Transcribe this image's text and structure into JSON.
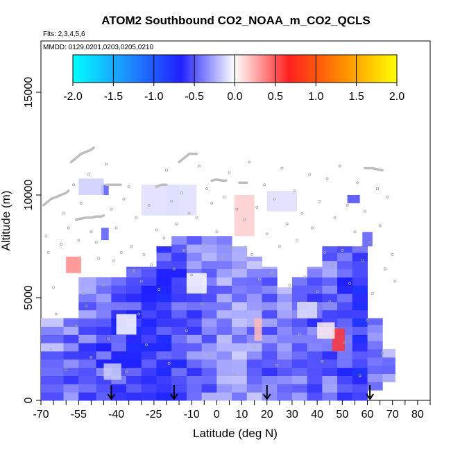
{
  "chart_data": {
    "type": "heatmap",
    "title": "ATOM2 Southbound CO2_NOAA_m_CO2_QCLS",
    "flights_label": "Flts: 2,3,4,5,6",
    "dates_label": "MMDD: 0129,0201,0203,0205,0210",
    "xlabel": "Latitude (deg N)",
    "ylabel": "Altitude (m)",
    "xlim": [
      -70,
      85
    ],
    "ylim": [
      0,
      17500
    ],
    "x_tick_labels": [
      "-70",
      "-55",
      "-40",
      "-25",
      "-10",
      "0",
      "10",
      "20",
      "30",
      "40",
      "50",
      "60",
      "70",
      "80"
    ],
    "x_tick_values": [
      -70,
      -55,
      -40,
      -25,
      -10,
      0,
      10,
      20,
      30,
      40,
      50,
      60,
      70,
      80
    ],
    "x_minor_tick_values": [
      -65,
      -60,
      -50,
      -45,
      -35,
      -30,
      -20,
      -15,
      -5,
      5,
      15,
      25,
      35,
      45,
      55,
      65,
      75,
      85
    ],
    "y_tick_values": [
      0,
      5000,
      10000,
      15000
    ],
    "y_tick_labels": [
      "0",
      "5000",
      "10000",
      "15000"
    ],
    "colorbar": {
      "min": -2.0,
      "max": 2.0,
      "tick_values": [
        -2.0,
        -1.5,
        -1.0,
        -0.5,
        0.0,
        0.5,
        1.0,
        1.5,
        2.0
      ],
      "tick_labels": [
        "-2.0",
        "-1.5",
        "-1.0",
        "-0.5",
        "0.0",
        "0.5",
        "1.0",
        "1.5",
        "2.0"
      ],
      "colors": [
        "#00ffff",
        "#1e90ff",
        "#2020ff",
        "#ffffff",
        "#ff2020",
        "#ff8c00",
        "#ffff00"
      ]
    },
    "heatmap_columns": [
      {
        "x0": -70,
        "x1": -61,
        "z0": 0,
        "z1": 4000,
        "value": -0.35
      },
      {
        "x0": -61,
        "x1": -55,
        "z0": 0,
        "z1": 4000,
        "value": -0.45
      },
      {
        "x0": -55,
        "x1": -48,
        "z0": 0,
        "z1": 6000,
        "value": -0.45
      },
      {
        "x0": -48,
        "x1": -42,
        "z0": 0,
        "z1": 6000,
        "value": -0.5
      },
      {
        "x0": -42,
        "x1": -36,
        "z0": 0,
        "z1": 6000,
        "value": -0.55
      },
      {
        "x0": -36,
        "x1": -30,
        "z0": 0,
        "z1": 6500,
        "value": -0.6
      },
      {
        "x0": -30,
        "x1": -24,
        "z0": 0,
        "z1": 6500,
        "value": -0.65
      },
      {
        "x0": -24,
        "x1": -18,
        "z0": 0,
        "z1": 7500,
        "value": -0.6
      },
      {
        "x0": -18,
        "x1": -12,
        "z0": 0,
        "z1": 8000,
        "value": -0.55
      },
      {
        "x0": -12,
        "x1": -6,
        "z0": 0,
        "z1": 8000,
        "value": -0.45
      },
      {
        "x0": -6,
        "x1": 0,
        "z0": 0,
        "z1": 8000,
        "value": -0.4
      },
      {
        "x0": 0,
        "x1": 6,
        "z0": 0,
        "z1": 8000,
        "value": -0.35
      },
      {
        "x0": 6,
        "x1": 12,
        "z0": 0,
        "z1": 7500,
        "value": -0.3
      },
      {
        "x0": 12,
        "x1": 18,
        "z0": 0,
        "z1": 7000,
        "value": -0.35
      },
      {
        "x0": 18,
        "x1": 24,
        "z0": 0,
        "z1": 6500,
        "value": -0.45
      },
      {
        "x0": 24,
        "x1": 30,
        "z0": 0,
        "z1": 5500,
        "value": -0.4
      },
      {
        "x0": 30,
        "x1": 36,
        "z0": 0,
        "z1": 6000,
        "value": -0.45
      },
      {
        "x0": 36,
        "x1": 42,
        "z0": 0,
        "z1": 6500,
        "value": -0.5
      },
      {
        "x0": 42,
        "x1": 48,
        "z0": 0,
        "z1": 7500,
        "value": -0.45
      },
      {
        "x0": 48,
        "x1": 54,
        "z0": 0,
        "z1": 7500,
        "value": -0.55
      },
      {
        "x0": 54,
        "x1": 60,
        "z0": 0,
        "z1": 7500,
        "value": -0.65
      },
      {
        "x0": 60,
        "x1": 66,
        "z0": 500,
        "z1": 4000,
        "value": -0.45
      },
      {
        "x0": 66,
        "x1": 71,
        "z0": 900,
        "z1": 2500,
        "value": -0.3
      }
    ],
    "anomalies": [
      {
        "x0": -60,
        "x1": -54,
        "z0": 6200,
        "z1": 7000,
        "value": 0.35
      },
      {
        "x0": 7,
        "x1": 15,
        "z0": 8000,
        "z1": 10000,
        "value": 0.15
      },
      {
        "x0": 15,
        "x1": 18,
        "z0": 2900,
        "z1": 4000,
        "value": 0.2
      },
      {
        "x0": 46,
        "x1": 51,
        "z0": 2400,
        "z1": 3500,
        "value": 0.6
      },
      {
        "x0": 40,
        "x1": 47,
        "z0": 3000,
        "z1": 3800,
        "value": 0.05
      },
      {
        "x0": -40,
        "x1": -32,
        "z0": 3200,
        "z1": 4200,
        "value": 0.0
      },
      {
        "x0": -12,
        "x1": -4,
        "z0": 5200,
        "z1": 6200,
        "value": 0.0
      },
      {
        "x0": 32,
        "x1": 40,
        "z0": 4000,
        "z1": 4800,
        "value": -0.1
      },
      {
        "x0": -45,
        "x1": -38,
        "z0": 1000,
        "z1": 1800,
        "value": -0.15
      },
      {
        "x0": 52,
        "x1": 57,
        "z0": 9600,
        "z1": 10000,
        "value": -0.55
      },
      {
        "x0": -46,
        "x1": -43,
        "z0": 10000,
        "z1": 10500,
        "value": -0.5
      },
      {
        "x0": -46,
        "x1": -43,
        "z0": 7800,
        "z1": 8400,
        "value": -0.5
      },
      {
        "x0": 58,
        "x1": 62,
        "z0": 7500,
        "z1": 8200,
        "value": -0.5
      },
      {
        "x0": -55,
        "x1": -45,
        "z0": 10000,
        "z1": 10800,
        "value": -0.15
      },
      {
        "x0": -20,
        "x1": -8,
        "z0": 9000,
        "z1": 10500,
        "value": -0.1
      },
      {
        "x0": 20,
        "x1": 32,
        "z0": 9200,
        "z1": 10200,
        "value": -0.1
      },
      {
        "x0": -30,
        "x1": -15,
        "z0": 9000,
        "z1": 10500,
        "value": -0.1
      }
    ],
    "flight_tracks": [
      {
        "x": [
          -69,
          -66,
          -64,
          -62,
          -60,
          -59
        ],
        "y": [
          9500,
          9800,
          9900,
          10000,
          10100,
          10200
        ]
      },
      {
        "x": [
          -58,
          -56,
          -54,
          -52,
          -50,
          -49
        ],
        "y": [
          11600,
          11800,
          12000,
          12100,
          12200,
          12300
        ]
      },
      {
        "x": [
          -56,
          -54,
          -52,
          -50,
          -48,
          -46,
          -45
        ],
        "y": [
          8800,
          8850,
          8900,
          8900,
          8950,
          8950,
          9000
        ]
      },
      {
        "x": [
          -15,
          -13,
          -11,
          -9,
          -8
        ],
        "y": [
          11600,
          11800,
          12000,
          12000,
          12000
        ]
      },
      {
        "x": [
          -44,
          -41,
          -38
        ],
        "y": [
          10500,
          10500,
          10500
        ]
      },
      {
        "x": [
          -24,
          -22,
          -20
        ],
        "y": [
          10400,
          10500,
          10500
        ]
      },
      {
        "x": [
          59,
          62,
          64,
          66
        ],
        "y": [
          11300,
          11300,
          11250,
          11200
        ]
      },
      {
        "x": [
          -2,
          0,
          2,
          4
        ],
        "y": [
          10700,
          10750,
          10700,
          10700
        ]
      },
      {
        "x": [
          9,
          12
        ],
        "y": [
          10600,
          10600
        ]
      }
    ],
    "sample_points": [
      [
        -68,
        8000
      ],
      [
        -67,
        7200
      ],
      [
        -65,
        5500
      ],
      [
        -64,
        4200
      ],
      [
        -62,
        7600
      ],
      [
        -61,
        9100
      ],
      [
        -59,
        8400
      ],
      [
        -57,
        10500
      ],
      [
        -55,
        7800
      ],
      [
        -54,
        9600
      ],
      [
        -53,
        5200
      ],
      [
        -52,
        4600
      ],
      [
        -51,
        11000
      ],
      [
        -50,
        8200
      ],
      [
        -48,
        7700
      ],
      [
        -47,
        6900
      ],
      [
        -45,
        5600
      ],
      [
        -44,
        11500
      ],
      [
        -42,
        9300
      ],
      [
        -41,
        6800
      ],
      [
        -40,
        8400
      ],
      [
        -38,
        7200
      ],
      [
        -37,
        9800
      ],
      [
        -35,
        10400
      ],
      [
        -34,
        7500
      ],
      [
        -33,
        6300
      ],
      [
        -32,
        8900
      ],
      [
        -30,
        5800
      ],
      [
        -29,
        7100
      ],
      [
        -27,
        9500
      ],
      [
        -26,
        6600
      ],
      [
        -24,
        8300
      ],
      [
        -23,
        5400
      ],
      [
        -21,
        7900
      ],
      [
        -20,
        11200
      ],
      [
        -18,
        9700
      ],
      [
        -17,
        6400
      ],
      [
        -16,
        8600
      ],
      [
        -14,
        10100
      ],
      [
        -13,
        7300
      ],
      [
        -11,
        9100
      ],
      [
        -10,
        6100
      ],
      [
        -8,
        8900
      ],
      [
        -7,
        11400
      ],
      [
        -5,
        7600
      ],
      [
        -4,
        10300
      ],
      [
        -2,
        9600
      ],
      [
        0,
        8200
      ],
      [
        2,
        6900
      ],
      [
        3,
        9900
      ],
      [
        5,
        11100
      ],
      [
        6,
        7400
      ],
      [
        8,
        9300
      ],
      [
        10,
        6500
      ],
      [
        11,
        8800
      ],
      [
        13,
        11600
      ],
      [
        14,
        7100
      ],
      [
        16,
        9400
      ],
      [
        17,
        5900
      ],
      [
        19,
        10500
      ],
      [
        20,
        8100
      ],
      [
        22,
        6200
      ],
      [
        23,
        9800
      ],
      [
        25,
        7500
      ],
      [
        26,
        11300
      ],
      [
        28,
        8600
      ],
      [
        29,
        5600
      ],
      [
        31,
        10200
      ],
      [
        32,
        7800
      ],
      [
        34,
        9100
      ],
      [
        35,
        6000
      ],
      [
        37,
        11000
      ],
      [
        38,
        8400
      ],
      [
        40,
        5300
      ],
      [
        41,
        9700
      ],
      [
        43,
        7200
      ],
      [
        44,
        10800
      ],
      [
        46,
        6600
      ],
      [
        47,
        8900
      ],
      [
        49,
        11400
      ],
      [
        50,
        7300
      ],
      [
        52,
        9500
      ],
      [
        53,
        5700
      ],
      [
        55,
        8200
      ],
      [
        56,
        10600
      ],
      [
        58,
        6800
      ],
      [
        59,
        9200
      ],
      [
        61,
        7700
      ],
      [
        62,
        5200
      ],
      [
        64,
        10300
      ],
      [
        65,
        8500
      ],
      [
        67,
        6400
      ],
      [
        68,
        9900
      ],
      [
        70,
        7100
      ],
      [
        71,
        5800
      ],
      [
        -66,
        2500
      ],
      [
        -60,
        1500
      ],
      [
        -50,
        2100
      ],
      [
        -43,
        3000
      ],
      [
        -36,
        1400
      ],
      [
        -28,
        2700
      ],
      [
        -19,
        1800
      ],
      [
        -12,
        3400
      ],
      [
        -3,
        2200
      ],
      [
        7,
        1300
      ],
      [
        15,
        2600
      ],
      [
        24,
        1700
      ],
      [
        33,
        3200
      ],
      [
        42,
        1900
      ],
      [
        51,
        2800
      ],
      [
        57,
        1200
      ],
      [
        66,
        2300
      ],
      [
        -56,
        3600
      ],
      [
        -31,
        4200
      ],
      [
        -6,
        4700
      ],
      [
        18,
        4400
      ],
      [
        45,
        4800
      ],
      [
        60,
        3900
      ]
    ],
    "arrows": [
      {
        "x": -42,
        "label": ""
      },
      {
        "x": -17,
        "label": ""
      },
      {
        "x": 20,
        "label": ""
      },
      {
        "x": 61,
        "label": ""
      }
    ]
  }
}
